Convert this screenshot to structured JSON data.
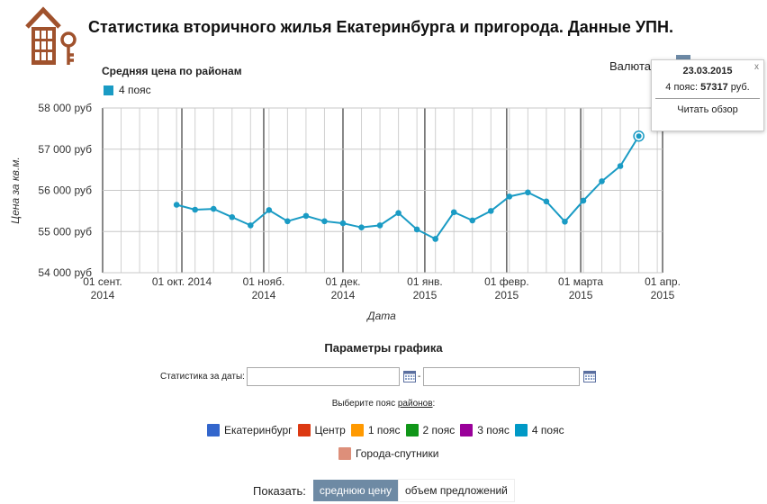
{
  "header": {
    "title": "Статистика вторичного жилья Екатеринбурга и пригорода. Данные УПН."
  },
  "currency": {
    "label": "Валюта"
  },
  "tooltip": {
    "close": "x",
    "date": "23.03.2015",
    "series": "4 пояс:",
    "value": "57317",
    "unit": "руб.",
    "link": "Читать обзор"
  },
  "chart_data": {
    "type": "line",
    "title": "Средняя цена по районам",
    "xlabel": "Дата",
    "ylabel": "Цена за кв.м.",
    "ylim": [
      54000,
      58000
    ],
    "y_ticks": [
      "54 000 руб",
      "55 000 руб",
      "56 000 руб",
      "57 000 руб",
      "58 000 руб"
    ],
    "x_ticks": [
      {
        "l1": "01 сент.",
        "l2": "2014"
      },
      {
        "l1": "01 окт. 2014",
        "l2": ""
      },
      {
        "l1": "01 нояб.",
        "l2": "2014"
      },
      {
        "l1": "01 дек.",
        "l2": "2014"
      },
      {
        "l1": "01 янв.",
        "l2": "2015"
      },
      {
        "l1": "01 февр.",
        "l2": "2015"
      },
      {
        "l1": "01 марта",
        "l2": "2015"
      },
      {
        "l1": "01 апр.",
        "l2": "2015"
      }
    ],
    "grid": true,
    "legend": "top-left",
    "series": [
      {
        "name": "4 пояс",
        "color": "#1a9bc4",
        "x": [
          "2014-09-29",
          "2014-10-06",
          "2014-10-13",
          "2014-10-20",
          "2014-10-27",
          "2014-11-03",
          "2014-11-10",
          "2014-11-17",
          "2014-11-24",
          "2014-12-01",
          "2014-12-08",
          "2014-12-15",
          "2014-12-22",
          "2014-12-29",
          "2015-01-05",
          "2015-01-12",
          "2015-01-19",
          "2015-01-26",
          "2015-02-02",
          "2015-02-09",
          "2015-02-16",
          "2015-02-23",
          "2015-03-02",
          "2015-03-09",
          "2015-03-16",
          "2015-03-23"
        ],
        "values": [
          55650,
          55530,
          55550,
          55350,
          55150,
          55520,
          55250,
          55380,
          55250,
          55200,
          55100,
          55150,
          55450,
          55050,
          54820,
          55470,
          55270,
          55500,
          55850,
          55950,
          55730,
          55240,
          55750,
          56220,
          56590,
          57317
        ]
      }
    ]
  },
  "params": {
    "title": "Параметры графика",
    "dates_label": "Статистика за даты:",
    "date_from": "",
    "date_to": "",
    "dash": "-",
    "choose_prefix": "Выберите пояс ",
    "choose_link": "районов",
    "choose_suffix": ":"
  },
  "zones": [
    {
      "label": "Екатеринбург",
      "color": "#3366cc"
    },
    {
      "label": "Центр",
      "color": "#dc3912"
    },
    {
      "label": "1 пояс",
      "color": "#ff9900"
    },
    {
      "label": "2 пояс",
      "color": "#109618"
    },
    {
      "label": "3 пояс",
      "color": "#990099"
    },
    {
      "label": "4 пояс",
      "color": "#0099c6"
    },
    {
      "label": "Города-спутники",
      "color": "#dd8f7a"
    }
  ],
  "show": {
    "label": "Показать:",
    "avg_price": "среднюю цену",
    "volume": "объем предложений"
  }
}
